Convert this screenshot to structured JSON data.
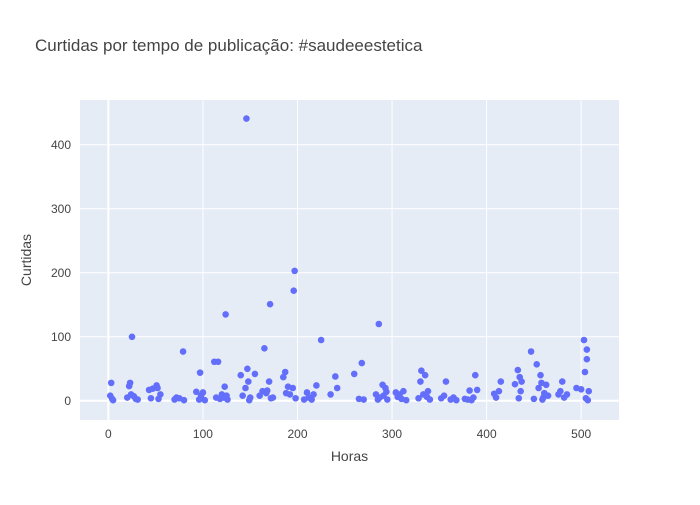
{
  "chart_data": {
    "type": "scatter",
    "title": "Curtidas por tempo de publicação: #saudeeestetica",
    "xlabel": "Horas",
    "ylabel": "Curtidas",
    "xlim": [
      -30,
      540
    ],
    "ylim": [
      -30,
      470
    ],
    "xticks": [
      0,
      100,
      200,
      300,
      400,
      500
    ],
    "yticks": [
      0,
      100,
      200,
      300,
      400
    ],
    "grid": true,
    "marker_color": "#636efa",
    "plot_bg": "#e5ecf6",
    "points": [
      {
        "x": 2,
        "y": 8
      },
      {
        "x": 3,
        "y": 28
      },
      {
        "x": 4,
        "y": 3
      },
      {
        "x": 5,
        "y": 1
      },
      {
        "x": 20,
        "y": 5
      },
      {
        "x": 22,
        "y": 23
      },
      {
        "x": 23,
        "y": 28
      },
      {
        "x": 24,
        "y": 10
      },
      {
        "x": 25,
        "y": 100
      },
      {
        "x": 27,
        "y": 7
      },
      {
        "x": 29,
        "y": 3
      },
      {
        "x": 31,
        "y": 2
      },
      {
        "x": 43,
        "y": 17
      },
      {
        "x": 45,
        "y": 4
      },
      {
        "x": 47,
        "y": 19
      },
      {
        "x": 51,
        "y": 24
      },
      {
        "x": 52,
        "y": 20
      },
      {
        "x": 53,
        "y": 3
      },
      {
        "x": 55,
        "y": 10
      },
      {
        "x": 70,
        "y": 2
      },
      {
        "x": 72,
        "y": 5
      },
      {
        "x": 75,
        "y": 4
      },
      {
        "x": 79,
        "y": 77
      },
      {
        "x": 80,
        "y": 1
      },
      {
        "x": 93,
        "y": 14
      },
      {
        "x": 97,
        "y": 44
      },
      {
        "x": 98,
        "y": 8
      },
      {
        "x": 100,
        "y": 13
      },
      {
        "x": 102,
        "y": 1
      },
      {
        "x": 96,
        "y": 2
      },
      {
        "x": 112,
        "y": 61
      },
      {
        "x": 116,
        "y": 61
      },
      {
        "x": 114,
        "y": 5
      },
      {
        "x": 118,
        "y": 3
      },
      {
        "x": 120,
        "y": 10
      },
      {
        "x": 122,
        "y": 5
      },
      {
        "x": 123,
        "y": 22
      },
      {
        "x": 124,
        "y": 135
      },
      {
        "x": 126,
        "y": 2
      },
      {
        "x": 125,
        "y": 8
      },
      {
        "x": 140,
        "y": 40
      },
      {
        "x": 142,
        "y": 8
      },
      {
        "x": 145,
        "y": 20
      },
      {
        "x": 146,
        "y": 441
      },
      {
        "x": 147,
        "y": 50
      },
      {
        "x": 148,
        "y": 30
      },
      {
        "x": 149,
        "y": 1
      },
      {
        "x": 150,
        "y": 5
      },
      {
        "x": 155,
        "y": 42
      },
      {
        "x": 160,
        "y": 8
      },
      {
        "x": 163,
        "y": 15
      },
      {
        "x": 165,
        "y": 82
      },
      {
        "x": 167,
        "y": 12
      },
      {
        "x": 168,
        "y": 16
      },
      {
        "x": 170,
        "y": 30
      },
      {
        "x": 171,
        "y": 151
      },
      {
        "x": 172,
        "y": 4
      },
      {
        "x": 174,
        "y": 5
      },
      {
        "x": 185,
        "y": 37
      },
      {
        "x": 187,
        "y": 45
      },
      {
        "x": 188,
        "y": 12
      },
      {
        "x": 190,
        "y": 22
      },
      {
        "x": 192,
        "y": 10
      },
      {
        "x": 195,
        "y": 20
      },
      {
        "x": 196,
        "y": 172
      },
      {
        "x": 197,
        "y": 203
      },
      {
        "x": 198,
        "y": 4
      },
      {
        "x": 207,
        "y": 2
      },
      {
        "x": 210,
        "y": 13
      },
      {
        "x": 212,
        "y": 5
      },
      {
        "x": 215,
        "y": 2
      },
      {
        "x": 217,
        "y": 10
      },
      {
        "x": 220,
        "y": 24
      },
      {
        "x": 225,
        "y": 95
      },
      {
        "x": 235,
        "y": 10
      },
      {
        "x": 240,
        "y": 38
      },
      {
        "x": 242,
        "y": 20
      },
      {
        "x": 260,
        "y": 42
      },
      {
        "x": 265,
        "y": 3
      },
      {
        "x": 268,
        "y": 59
      },
      {
        "x": 270,
        "y": 2
      },
      {
        "x": 283,
        "y": 10
      },
      {
        "x": 285,
        "y": 2
      },
      {
        "x": 286,
        "y": 120
      },
      {
        "x": 287,
        "y": 5
      },
      {
        "x": 290,
        "y": 25
      },
      {
        "x": 291,
        "y": 8
      },
      {
        "x": 293,
        "y": 20
      },
      {
        "x": 294,
        "y": 14
      },
      {
        "x": 295,
        "y": 2
      },
      {
        "x": 304,
        "y": 13
      },
      {
        "x": 306,
        "y": 6
      },
      {
        "x": 308,
        "y": 10
      },
      {
        "x": 310,
        "y": 3
      },
      {
        "x": 312,
        "y": 15
      },
      {
        "x": 315,
        "y": 1
      },
      {
        "x": 328,
        "y": 4
      },
      {
        "x": 330,
        "y": 30
      },
      {
        "x": 331,
        "y": 47
      },
      {
        "x": 333,
        "y": 10
      },
      {
        "x": 335,
        "y": 40
      },
      {
        "x": 337,
        "y": 6
      },
      {
        "x": 338,
        "y": 15
      },
      {
        "x": 340,
        "y": 2
      },
      {
        "x": 352,
        "y": 4
      },
      {
        "x": 355,
        "y": 8
      },
      {
        "x": 357,
        "y": 30
      },
      {
        "x": 362,
        "y": 2
      },
      {
        "x": 365,
        "y": 5
      },
      {
        "x": 368,
        "y": 1
      },
      {
        "x": 377,
        "y": 3
      },
      {
        "x": 380,
        "y": 2
      },
      {
        "x": 382,
        "y": 16
      },
      {
        "x": 384,
        "y": 1
      },
      {
        "x": 386,
        "y": 5
      },
      {
        "x": 388,
        "y": 40
      },
      {
        "x": 390,
        "y": 17
      },
      {
        "x": 408,
        "y": 11
      },
      {
        "x": 410,
        "y": 5
      },
      {
        "x": 413,
        "y": 15
      },
      {
        "x": 415,
        "y": 30
      },
      {
        "x": 430,
        "y": 26
      },
      {
        "x": 433,
        "y": 48
      },
      {
        "x": 434,
        "y": 4
      },
      {
        "x": 435,
        "y": 37
      },
      {
        "x": 436,
        "y": 15
      },
      {
        "x": 437,
        "y": 30
      },
      {
        "x": 447,
        "y": 77
      },
      {
        "x": 450,
        "y": 3
      },
      {
        "x": 453,
        "y": 57
      },
      {
        "x": 455,
        "y": 20
      },
      {
        "x": 457,
        "y": 40
      },
      {
        "x": 458,
        "y": 28
      },
      {
        "x": 459,
        "y": 2
      },
      {
        "x": 460,
        "y": 5
      },
      {
        "x": 461,
        "y": 12
      },
      {
        "x": 463,
        "y": 25
      },
      {
        "x": 465,
        "y": 8
      },
      {
        "x": 476,
        "y": 10
      },
      {
        "x": 478,
        "y": 15
      },
      {
        "x": 480,
        "y": 30
      },
      {
        "x": 482,
        "y": 5
      },
      {
        "x": 485,
        "y": 10
      },
      {
        "x": 495,
        "y": 20
      },
      {
        "x": 500,
        "y": 18
      },
      {
        "x": 503,
        "y": 95
      },
      {
        "x": 504,
        "y": 45
      },
      {
        "x": 505,
        "y": 4
      },
      {
        "x": 506,
        "y": 65
      },
      {
        "x": 506,
        "y": 80
      },
      {
        "x": 507,
        "y": 1
      },
      {
        "x": 508,
        "y": 15
      }
    ]
  }
}
